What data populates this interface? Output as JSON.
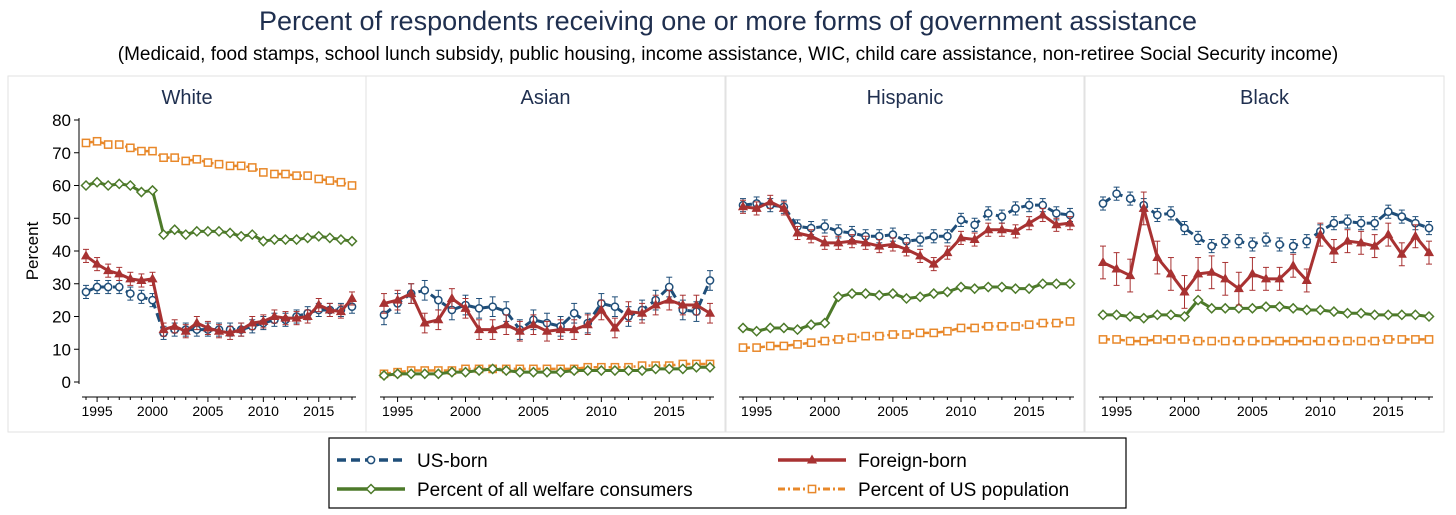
{
  "title": "Percent of respondents receiving one or more forms of government assistance",
  "subtitle": "(Medicaid, food stamps, school lunch subsidy, public housing, income assistance, WIC, child care assistance, non-retiree Social Security income)",
  "colors": {
    "us_born": "#1f4e79",
    "foreign_born": "#a83232",
    "welfare": "#4d7a2a",
    "population": "#e8882a"
  },
  "legend": {
    "items": [
      "US-born",
      "Foreign-born",
      "Percent of all welfare consumers",
      "Percent of US population"
    ]
  },
  "chart_data": {
    "type": "line",
    "ylabel": "Percent",
    "ylim": [
      0,
      80
    ],
    "y_ticks": [
      0,
      10,
      20,
      30,
      40,
      50,
      60,
      70,
      80
    ],
    "xlim": [
      1994,
      2018
    ],
    "x_ticks": [
      1995,
      2000,
      2005,
      2010,
      2015
    ],
    "x": [
      1994,
      1995,
      1996,
      1997,
      1998,
      1999,
      2000,
      2001,
      2002,
      2003,
      2004,
      2005,
      2006,
      2007,
      2008,
      2009,
      2010,
      2011,
      2012,
      2013,
      2014,
      2015,
      2016,
      2017,
      2018
    ],
    "panels": [
      {
        "name": "White",
        "series": [
          {
            "name": "US-born",
            "values": [
              27.5,
              29,
              29,
              29,
              27,
              26,
              25,
              15,
              16,
              16,
              16,
              16,
              16,
              16,
              16,
              17,
              18,
              19,
              19,
              20,
              21,
              22,
              22,
              22,
              23
            ]
          },
          {
            "name": "Foreign-born",
            "values": [
              38.5,
              36,
              34,
              33,
              31.5,
              31,
              31.5,
              16,
              17,
              15.5,
              18,
              16.5,
              15.5,
              15,
              16,
              18,
              18.5,
              20,
              19.5,
              19.5,
              20,
              23.5,
              22,
              21.5,
              25.5
            ]
          },
          {
            "name": "Percent of all welfare consumers",
            "values": [
              60,
              61,
              60,
              60.5,
              60,
              58,
              58.5,
              45,
              46.5,
              45,
              46,
              46,
              46,
              45.5,
              44.5,
              45,
              43,
              43.5,
              43.5,
              43.5,
              44,
              44.5,
              44,
              43.5,
              43
            ]
          },
          {
            "name": "Percent of US population",
            "values": [
              73,
              73.5,
              72.5,
              72.5,
              71.5,
              70.5,
              70.5,
              68.5,
              68.5,
              67.5,
              68,
              67,
              66.5,
              66,
              66,
              65.5,
              64,
              63.5,
              63.5,
              63,
              63,
              62,
              61.5,
              61,
              60
            ]
          }
        ]
      },
      {
        "name": "Asian",
        "series": [
          {
            "name": "US-born",
            "values": [
              20.5,
              24,
              27,
              28,
              25,
              22,
              23.5,
              22.5,
              23,
              21.5,
              16,
              19,
              18,
              17,
              21,
              18,
              24,
              23,
              20,
              22,
              25,
              29,
              22,
              21.5,
              31
            ]
          },
          {
            "name": "Foreign-born",
            "values": [
              24,
              25,
              27,
              18,
              19,
              25.5,
              22.5,
              16,
              16,
              17.5,
              15.5,
              17.5,
              15.5,
              16,
              16,
              17.5,
              22,
              16.5,
              21.5,
              21,
              23.5,
              25,
              23.5,
              23.5,
              21
            ]
          },
          {
            "name": "Percent of all welfare consumers",
            "values": [
              2,
              2.5,
              2.5,
              2.5,
              2.5,
              3,
              3,
              3.5,
              4,
              3.5,
              3,
              3,
              3,
              3,
              3.5,
              3.5,
              3.5,
              3.5,
              3.5,
              3.5,
              4,
              4,
              4,
              4.5,
              4.5
            ]
          },
          {
            "name": "Percent of US population",
            "values": [
              2.5,
              3,
              3.5,
              3.5,
              3.5,
              3.5,
              4,
              4,
              4,
              4,
              4,
              4,
              4,
              4,
              4,
              4.5,
              4.5,
              4.5,
              4.5,
              5,
              5,
              5,
              5.5,
              5.5,
              5.5
            ]
          }
        ]
      },
      {
        "name": "Hispanic",
        "series": [
          {
            "name": "US-born",
            "values": [
              54,
              54.5,
              54,
              53.5,
              47.5,
              47,
              47.5,
              46,
              45.5,
              44.5,
              44.5,
              45,
              43,
              43.5,
              44.5,
              44.5,
              49.5,
              48,
              51.5,
              50.5,
              53,
              54,
              54,
              51.5,
              51
            ]
          },
          {
            "name": "Foreign-born",
            "values": [
              53.5,
              53,
              55,
              53,
              45.5,
              44.5,
              42.5,
              42.5,
              43,
              42.5,
              41.5,
              42,
              40.5,
              38.5,
              36,
              39.5,
              44,
              43.5,
              46.5,
              46.5,
              46,
              48.5,
              51,
              48,
              48.5
            ]
          },
          {
            "name": "Percent of all welfare consumers",
            "values": [
              16.5,
              15.5,
              16.5,
              16.5,
              16,
              17.5,
              18,
              26,
              27,
              27,
              26.5,
              27,
              25.5,
              26,
              27,
              27.5,
              29,
              28.5,
              29,
              29,
              28.5,
              28.5,
              30,
              30,
              30
            ]
          },
          {
            "name": "Percent of US population",
            "values": [
              10.5,
              10.5,
              11,
              11,
              11.5,
              12,
              12.5,
              13,
              13.5,
              14,
              14,
              14.5,
              14.5,
              15,
              15,
              15.5,
              16.5,
              16.5,
              17,
              17,
              17,
              17.5,
              18,
              18,
              18.5
            ]
          }
        ]
      },
      {
        "name": "Black",
        "series": [
          {
            "name": "US-born",
            "values": [
              54.5,
              57.5,
              56,
              54,
              51,
              51.5,
              47,
              44,
              41.5,
              43,
              43,
              42,
              43.5,
              42,
              41.5,
              43,
              46,
              48.5,
              49,
              48.5,
              48.5,
              52,
              50.5,
              48.5,
              47
            ]
          },
          {
            "name": "Foreign-born",
            "values": [
              36.5,
              34.5,
              32.5,
              53,
              38,
              33,
              27.5,
              33,
              33.5,
              31.5,
              28.5,
              33,
              31.5,
              31.5,
              35.5,
              31,
              45,
              40,
              43,
              42.5,
              41.5,
              45,
              39,
              44.5,
              39.5
            ]
          },
          {
            "name": "Percent of all welfare consumers",
            "values": [
              20.5,
              20.5,
              20,
              19.5,
              20.5,
              20.5,
              20,
              25,
              22.5,
              22.5,
              22.5,
              22.5,
              23,
              23,
              22.5,
              22,
              22,
              21.5,
              21,
              21,
              20.5,
              20.5,
              20.5,
              20.5,
              20
            ]
          },
          {
            "name": "Percent of US population",
            "values": [
              13,
              13,
              12.5,
              12.5,
              13,
              13,
              13,
              12.5,
              12.5,
              12.5,
              12.5,
              12.5,
              12.5,
              12.5,
              12.5,
              12.5,
              12.5,
              12.5,
              12.5,
              12.5,
              12.5,
              13,
              13,
              13,
              13
            ]
          }
        ]
      }
    ]
  }
}
